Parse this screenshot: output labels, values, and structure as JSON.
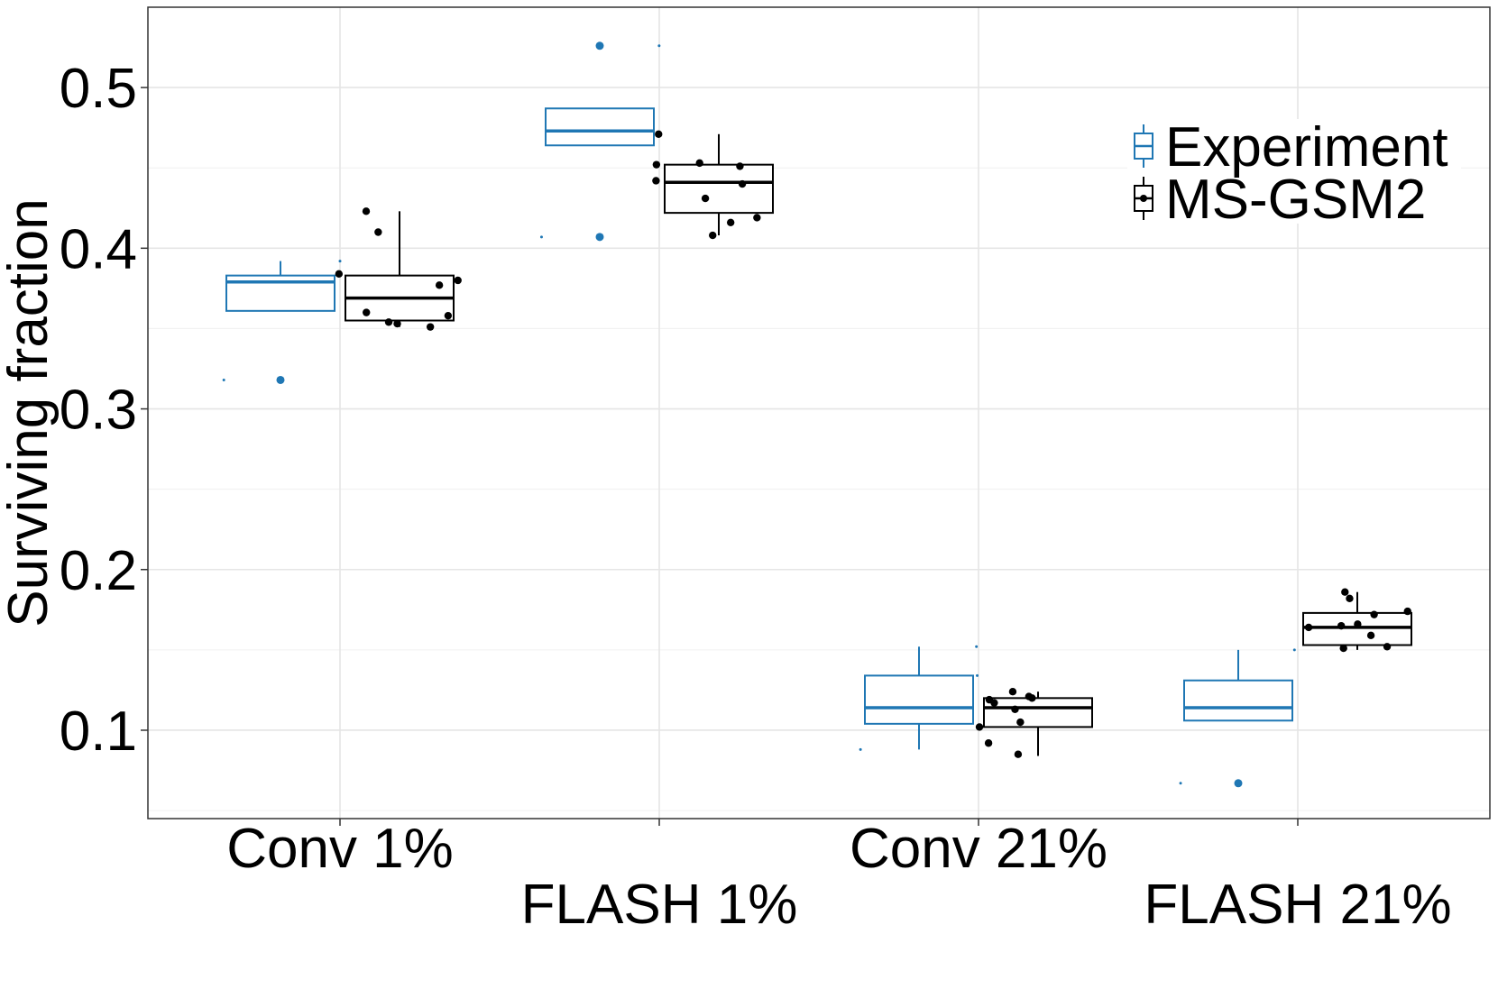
{
  "chart_data": {
    "type": "boxplot",
    "title": "",
    "xlabel": "",
    "ylabel": "Surviving fraction",
    "ylim": [
      0.045,
      0.55
    ],
    "yticks": [
      0.1,
      0.2,
      0.3,
      0.4,
      0.5
    ],
    "ytick_labels": [
      "0.1",
      "0.2",
      "0.3",
      "0.4",
      "0.5"
    ],
    "grid": true,
    "legend_position": "top-right",
    "categories": [
      "Conv 1%",
      "FLASH 1%",
      "Conv 21%",
      "FLASH 21%"
    ],
    "series": [
      {
        "name": "Experiment",
        "color": "#1f77b4",
        "boxes": [
          {
            "q1": 0.361,
            "median": 0.379,
            "q3": 0.383,
            "whisker_low": 0.361,
            "whisker_high": 0.392,
            "points": [
              0.318
            ],
            "dots": [
              0.392,
              0.318
            ]
          },
          {
            "q1": 0.464,
            "median": 0.473,
            "q3": 0.487,
            "whisker_low": 0.464,
            "whisker_high": 0.487,
            "points": [
              0.526,
              0.407
            ],
            "dots": [
              0.526,
              0.407
            ]
          },
          {
            "q1": 0.104,
            "median": 0.114,
            "q3": 0.134,
            "whisker_low": 0.088,
            "whisker_high": 0.152,
            "points": [],
            "dots": [
              0.152,
              0.088,
              0.134
            ]
          },
          {
            "q1": 0.106,
            "median": 0.114,
            "q3": 0.131,
            "whisker_low": 0.106,
            "whisker_high": 0.15,
            "points": [
              0.067
            ],
            "dots": [
              0.15,
              0.067
            ]
          }
        ]
      },
      {
        "name": "MS-GSM2",
        "color": "#000000",
        "boxes": [
          {
            "q1": 0.355,
            "median": 0.369,
            "q3": 0.383,
            "whisker_low": 0.351,
            "whisker_high": 0.423,
            "points": [
              0.423,
              0.41,
              0.384,
              0.38,
              0.377,
              0.36,
              0.358,
              0.354,
              0.353,
              0.351
            ]
          },
          {
            "q1": 0.422,
            "median": 0.441,
            "q3": 0.452,
            "whisker_low": 0.408,
            "whisker_high": 0.471,
            "points": [
              0.471,
              0.453,
              0.452,
              0.451,
              0.442,
              0.44,
              0.431,
              0.419,
              0.416,
              0.408
            ]
          },
          {
            "q1": 0.102,
            "median": 0.114,
            "q3": 0.12,
            "whisker_low": 0.084,
            "whisker_high": 0.124,
            "points": [
              0.124,
              0.121,
              0.12,
              0.119,
              0.117,
              0.113,
              0.105,
              0.102,
              0.092,
              0.085
            ]
          },
          {
            "q1": 0.153,
            "median": 0.164,
            "q3": 0.173,
            "whisker_low": 0.15,
            "whisker_high": 0.186,
            "points": [
              0.186,
              0.182,
              0.174,
              0.172,
              0.166,
              0.165,
              0.164,
              0.159,
              0.152,
              0.151
            ]
          }
        ]
      }
    ]
  }
}
